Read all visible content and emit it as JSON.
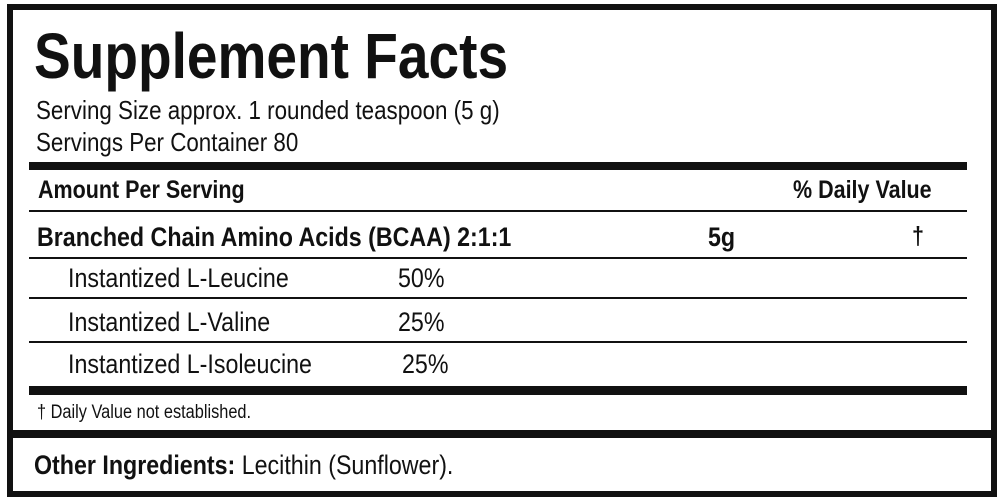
{
  "title": "Supplement Facts",
  "serving_size": "Serving Size approx. 1 rounded teaspoon (5 g)",
  "servings_per_container": "Servings Per Container 80",
  "header": {
    "amount": "Amount Per Serving",
    "daily_value": "% Daily Value"
  },
  "main_row": {
    "name": "Branched Chain Amino Acids (BCAA) 2:1:1",
    "amount": "5g",
    "dv": "†"
  },
  "sub_rows": [
    {
      "name": "Instantized L-Leucine",
      "percent": "50%"
    },
    {
      "name": "Instantized L-Valine",
      "percent": "25%"
    },
    {
      "name": "Instantized L-Isoleucine",
      "percent": "25%"
    }
  ],
  "footnote": "† Daily Value not established.",
  "other_ingredients": {
    "label": "Other Ingredients:",
    "value": "Lecithin (Sunflower)."
  }
}
